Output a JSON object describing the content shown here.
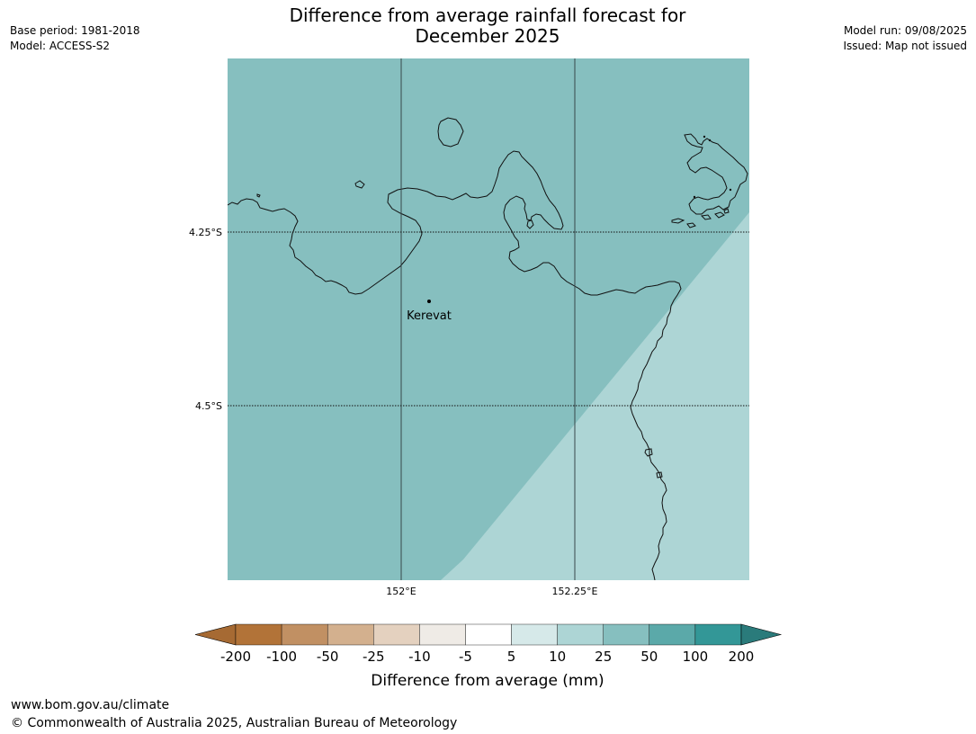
{
  "header": {
    "base_period": "Base period: 1981-2018",
    "model": "Model: ACCESS-S2",
    "model_run": "Model run: 09/08/2025",
    "issued": "Issued: Map not issued",
    "title_line1": "Difference from average rainfall forecast for",
    "title_line2": "December 2025"
  },
  "map": {
    "lat_labels": [
      "4.25°S",
      "4.5°S"
    ],
    "lon_labels": [
      "152°E",
      "152.25°E"
    ],
    "place": {
      "name": "Kerevat"
    },
    "region_colors": {
      "bin_25_50": "#86bfbf",
      "bin_10_25": "#add5d5"
    }
  },
  "legend": {
    "title": "Difference from average (mm)",
    "tick_labels": [
      "-200",
      "-100",
      "-50",
      "-25",
      "-10",
      "-5",
      "5",
      "10",
      "25",
      "50",
      "100",
      "200"
    ],
    "colors": [
      "#a66a33",
      "#b27338",
      "#c19063",
      "#d3b08e",
      "#e4d1bf",
      "#efebe6",
      "#ffffff",
      "#d6e9e9",
      "#add5d5",
      "#86bfbf",
      "#5ba9a9",
      "#339797",
      "#2a7b7b"
    ]
  },
  "footer": {
    "url": "www.bom.gov.au/climate",
    "copyright": "© Commonwealth of Australia 2025, Australian Bureau of Meteorology"
  }
}
